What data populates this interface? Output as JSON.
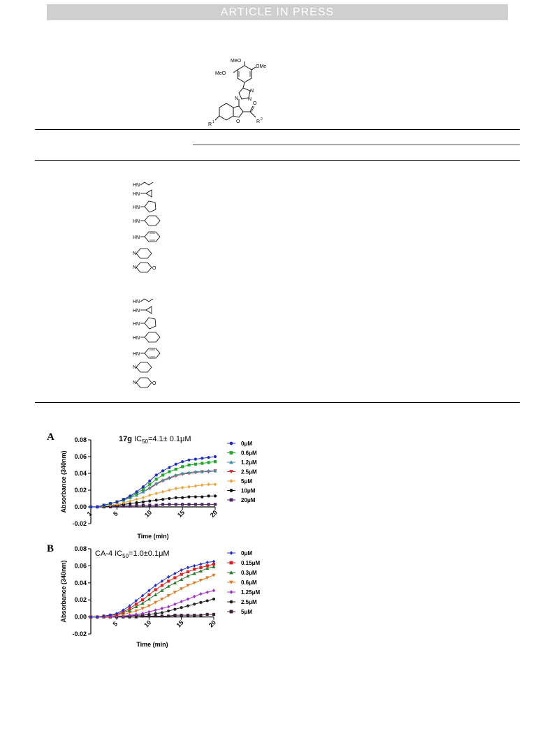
{
  "banner": {
    "text": "ARTICLE IN PRESS"
  },
  "scaffold": {
    "labels": [
      "MeO",
      "OMe",
      "MeO",
      "N",
      "N",
      "N",
      "O",
      "R",
      "1",
      "O",
      "R",
      "2"
    ]
  },
  "substituents_group1": [
    "HN",
    "HN",
    "HN",
    "HN",
    "HN",
    "N",
    "N",
    "O"
  ],
  "substituents_group2": [
    "HN",
    "HN",
    "HN",
    "HN",
    "HN",
    "N",
    "N",
    "O"
  ],
  "figure": {
    "panels": [
      {
        "letter": "A",
        "title_bold": "17g",
        "title_rest": " IC",
        "title_sub": "50",
        "title_value": "=4.1± 0.1μM"
      },
      {
        "letter": "B",
        "title_bold": "",
        "title_rest": "CA-4 IC",
        "title_sub": "50",
        "title_value": "=1.0±0.1μM"
      }
    ]
  },
  "chart_data": [
    {
      "type": "line",
      "title": "17g IC50=4.1± 0.1μM",
      "xlabel": "Time (min)",
      "ylabel": "Absorbance (340nm)",
      "xlim": [
        1,
        20
      ],
      "ylim": [
        -0.02,
        0.08
      ],
      "xticks": [
        1,
        5,
        10,
        15,
        20
      ],
      "xtick_labels": [
        "1",
        "5",
        "10",
        "15",
        "20"
      ],
      "yticks": [
        -0.02,
        0.0,
        0.02,
        0.04,
        0.06,
        0.08
      ],
      "ytick_labels": [
        "-0.02",
        "0.00",
        "0.02",
        "0.04",
        "0.06",
        "0.08"
      ],
      "grid": false,
      "legend": "right",
      "x": [
        1,
        2,
        3,
        4,
        5,
        6,
        7,
        8,
        9,
        10,
        11,
        12,
        13,
        14,
        15,
        16,
        17,
        18,
        19,
        20
      ],
      "series": [
        {
          "name": "0μM",
          "color": "#1f2fbf",
          "marker": "circle",
          "values": [
            0.0,
            0.0,
            0.002,
            0.004,
            0.006,
            0.009,
            0.013,
            0.018,
            0.024,
            0.031,
            0.038,
            0.043,
            0.047,
            0.051,
            0.054,
            0.056,
            0.057,
            0.058,
            0.059,
            0.06
          ]
        },
        {
          "name": "0.6μM",
          "color": "#1fa82a",
          "marker": "square",
          "values": [
            0.0,
            0.0,
            0.002,
            0.004,
            0.006,
            0.009,
            0.012,
            0.016,
            0.021,
            0.027,
            0.033,
            0.038,
            0.042,
            0.045,
            0.048,
            0.05,
            0.051,
            0.052,
            0.053,
            0.054
          ]
        },
        {
          "name": "1.2μM",
          "color": "#3f8fa8",
          "marker": "triangle",
          "values": [
            0.0,
            0.0,
            0.002,
            0.004,
            0.006,
            0.008,
            0.011,
            0.014,
            0.018,
            0.023,
            0.028,
            0.032,
            0.035,
            0.038,
            0.04,
            0.041,
            0.042,
            0.042,
            0.043,
            0.043
          ]
        },
        {
          "name": "2.5μM",
          "color": "#d42a2a",
          "marker": "triangle-down",
          "values": [
            0.0,
            0.0,
            0.002,
            0.004,
            0.006,
            0.008,
            0.011,
            0.014,
            0.018,
            0.022,
            0.027,
            0.031,
            0.034,
            0.037,
            0.039,
            0.04,
            0.041,
            0.042,
            0.042,
            0.043
          ]
        },
        {
          "name": "5μM",
          "color": "#f0a030",
          "marker": "diamond",
          "values": [
            0.0,
            0.0,
            0.001,
            0.002,
            0.003,
            0.005,
            0.007,
            0.009,
            0.011,
            0.014,
            0.016,
            0.018,
            0.02,
            0.022,
            0.023,
            0.024,
            0.025,
            0.026,
            0.027,
            0.027
          ]
        },
        {
          "name": "10μM",
          "color": "#111111",
          "marker": "circle",
          "values": [
            0.0,
            0.0,
            0.0,
            0.001,
            0.002,
            0.003,
            0.004,
            0.005,
            0.006,
            0.007,
            0.008,
            0.009,
            0.01,
            0.011,
            0.011,
            0.012,
            0.012,
            0.012,
            0.013,
            0.013
          ]
        },
        {
          "name": "20μM",
          "color": "#4a2360",
          "marker": "square",
          "values": [
            0.0,
            0.0,
            0.0,
            0.0,
            0.001,
            0.001,
            0.001,
            0.002,
            0.002,
            0.002,
            0.002,
            0.003,
            0.003,
            0.003,
            0.003,
            0.003,
            0.003,
            0.003,
            0.003,
            0.003
          ]
        }
      ]
    },
    {
      "type": "line",
      "title": "CA-4 IC50=1.0±0.1μM",
      "xlabel": "Time (min)",
      "ylabel": "Absorbance (340nm)",
      "xlim": [
        1,
        20
      ],
      "ylim": [
        -0.02,
        0.08
      ],
      "xticks": [
        5,
        10,
        15,
        20
      ],
      "xtick_labels": [
        "5",
        "10",
        "15",
        "20"
      ],
      "yticks": [
        -0.02,
        0.0,
        0.02,
        0.04,
        0.06,
        0.08
      ],
      "ytick_labels": [
        "-0.02",
        "0.00",
        "0.02",
        "0.04",
        "0.06",
        "0.08"
      ],
      "grid": false,
      "legend": "right",
      "x": [
        1,
        2,
        3,
        4,
        5,
        6,
        7,
        8,
        9,
        10,
        11,
        12,
        13,
        14,
        15,
        16,
        17,
        18,
        19,
        20
      ],
      "series": [
        {
          "name": "0μM",
          "color": "#2233cc",
          "marker": "diamond",
          "values": [
            0.0,
            0.0,
            0.001,
            0.002,
            0.004,
            0.008,
            0.013,
            0.019,
            0.025,
            0.031,
            0.037,
            0.042,
            0.047,
            0.051,
            0.055,
            0.058,
            0.06,
            0.062,
            0.064,
            0.065
          ]
        },
        {
          "name": "0.15μM",
          "color": "#dd1f1f",
          "marker": "square",
          "values": [
            0.0,
            0.0,
            0.001,
            0.002,
            0.003,
            0.006,
            0.01,
            0.015,
            0.02,
            0.026,
            0.032,
            0.037,
            0.042,
            0.046,
            0.05,
            0.053,
            0.056,
            0.058,
            0.06,
            0.062
          ]
        },
        {
          "name": "0.3μM",
          "color": "#2a7a2a",
          "marker": "triangle",
          "values": [
            0.0,
            0.0,
            0.001,
            0.002,
            0.003,
            0.005,
            0.008,
            0.012,
            0.016,
            0.021,
            0.026,
            0.031,
            0.036,
            0.04,
            0.044,
            0.048,
            0.051,
            0.054,
            0.057,
            0.059
          ]
        },
        {
          "name": "0.6μM",
          "color": "#e07a20",
          "marker": "triangle-down",
          "values": [
            0.0,
            0.0,
            0.0,
            0.001,
            0.002,
            0.003,
            0.005,
            0.007,
            0.01,
            0.013,
            0.017,
            0.021,
            0.025,
            0.029,
            0.033,
            0.037,
            0.04,
            0.043,
            0.046,
            0.049
          ]
        },
        {
          "name": "1.25μM",
          "color": "#a030c8",
          "marker": "diamond",
          "values": [
            0.0,
            0.0,
            0.0,
            0.0,
            0.001,
            0.001,
            0.002,
            0.003,
            0.004,
            0.006,
            0.008,
            0.01,
            0.012,
            0.015,
            0.018,
            0.021,
            0.024,
            0.027,
            0.029,
            0.031
          ]
        },
        {
          "name": "2.5μM",
          "color": "#222222",
          "marker": "circle",
          "values": [
            0.0,
            0.0,
            0.0,
            0.0,
            0.0,
            0.001,
            0.001,
            0.002,
            0.002,
            0.003,
            0.004,
            0.005,
            0.007,
            0.009,
            0.011,
            0.013,
            0.015,
            0.017,
            0.019,
            0.021
          ]
        },
        {
          "name": "5μM",
          "color": "#3d2338",
          "marker": "square",
          "values": [
            0.0,
            0.0,
            0.0,
            0.0,
            0.0,
            0.0,
            0.0,
            0.0,
            0.001,
            0.001,
            0.001,
            0.001,
            0.001,
            0.002,
            0.002,
            0.002,
            0.002,
            0.002,
            0.003,
            0.003
          ]
        }
      ]
    }
  ]
}
